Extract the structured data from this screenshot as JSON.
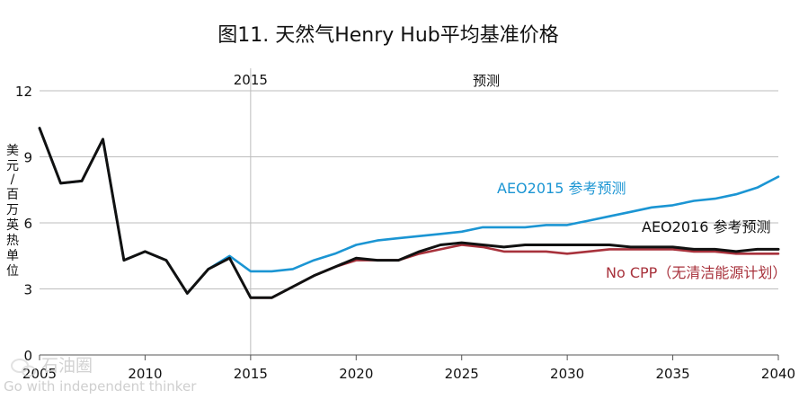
{
  "chart_data": {
    "type": "line",
    "title": "图11. 天然气Henry Hub平均基准价格",
    "ylabel": "美元/百万英热单位",
    "xlabel": "",
    "xlim": [
      2005,
      2040
    ],
    "ylim": [
      0,
      12
    ],
    "x_ticks": [
      2005,
      2010,
      2015,
      2020,
      2025,
      2030,
      2035,
      2040
    ],
    "y_ticks": [
      0,
      3,
      6,
      9,
      12
    ],
    "grid": "horizontal",
    "vline": {
      "x": 2015,
      "label": "2015"
    },
    "region_label": "预测",
    "series": [
      {
        "name": "AEO2015 参考预测",
        "color": "#1b95d3",
        "x": [
          2005,
          2006,
          2007,
          2008,
          2009,
          2010,
          2011,
          2012,
          2013,
          2014,
          2015,
          2016,
          2017,
          2018,
          2019,
          2020,
          2021,
          2022,
          2023,
          2024,
          2025,
          2026,
          2027,
          2028,
          2029,
          2030,
          2031,
          2032,
          2033,
          2034,
          2035,
          2036,
          2037,
          2038,
          2039,
          2040
        ],
        "values": [
          10.3,
          7.8,
          7.9,
          9.8,
          4.3,
          4.7,
          4.3,
          2.8,
          3.9,
          4.5,
          3.8,
          3.8,
          3.9,
          4.3,
          4.6,
          5.0,
          5.2,
          5.3,
          5.4,
          5.5,
          5.6,
          5.8,
          5.8,
          5.8,
          5.9,
          5.9,
          6.1,
          6.3,
          6.5,
          6.7,
          6.8,
          7.0,
          7.1,
          7.3,
          7.6,
          8.1
        ]
      },
      {
        "name": "AEO2016 参考预测",
        "color": "#111111",
        "x": [
          2005,
          2006,
          2007,
          2008,
          2009,
          2010,
          2011,
          2012,
          2013,
          2014,
          2015,
          2016,
          2017,
          2018,
          2019,
          2020,
          2021,
          2022,
          2023,
          2024,
          2025,
          2026,
          2027,
          2028,
          2029,
          2030,
          2031,
          2032,
          2033,
          2034,
          2035,
          2036,
          2037,
          2038,
          2039,
          2040
        ],
        "values": [
          10.3,
          7.8,
          7.9,
          9.8,
          4.3,
          4.7,
          4.3,
          2.8,
          3.9,
          4.4,
          2.6,
          2.6,
          3.1,
          3.6,
          4.0,
          4.4,
          4.3,
          4.3,
          4.7,
          5.0,
          5.1,
          5.0,
          4.9,
          5.0,
          5.0,
          5.0,
          5.0,
          5.0,
          4.9,
          4.9,
          4.9,
          4.8,
          4.8,
          4.7,
          4.8,
          4.8
        ]
      },
      {
        "name": "No CPP（无清洁能源计划）",
        "color": "#a8323c",
        "x": [
          2015,
          2016,
          2017,
          2018,
          2019,
          2020,
          2021,
          2022,
          2023,
          2024,
          2025,
          2026,
          2027,
          2028,
          2029,
          2030,
          2031,
          2032,
          2033,
          2034,
          2035,
          2036,
          2037,
          2038,
          2039,
          2040
        ],
        "values": [
          2.6,
          2.6,
          3.1,
          3.6,
          4.0,
          4.3,
          4.3,
          4.3,
          4.6,
          4.8,
          5.0,
          4.9,
          4.7,
          4.7,
          4.7,
          4.6,
          4.7,
          4.8,
          4.8,
          4.8,
          4.8,
          4.7,
          4.7,
          4.6,
          4.6,
          4.6
        ]
      }
    ],
    "annotations": {
      "aeo2015": "AEO2015 参考预测",
      "aeo2016": "AEO2016 参考预测",
      "nocpp": "No CPP（无清洁能源计划）"
    }
  },
  "watermark": {
    "brand": "石油圈",
    "tagline": "Go with independent thinker"
  }
}
